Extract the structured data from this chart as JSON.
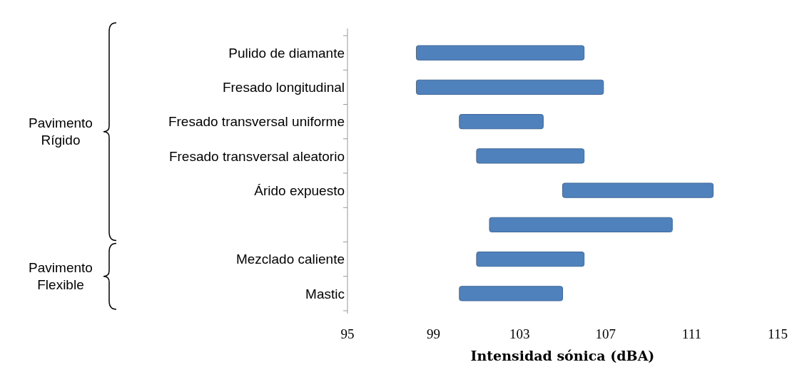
{
  "chart_data": {
    "type": "bar",
    "orientation": "horizontal",
    "categories": [
      "Pulido de diamante",
      "Fresado longitudinal",
      "Fresado transversal uniforme",
      "Fresado transversal aleatorio",
      "Árido expuesto",
      null,
      "Mezclado caliente",
      "Mastic"
    ],
    "base": [
      98.2,
      98.2,
      100.2,
      101.0,
      105.0,
      101.6,
      101.0,
      100.2
    ],
    "values": [
      7.8,
      8.7,
      3.9,
      5.0,
      7.0,
      8.5,
      5.0,
      4.8
    ],
    "color": "#4f81bd",
    "xlim": [
      95,
      115
    ],
    "xticks": [
      95,
      99,
      103,
      107,
      111,
      115
    ],
    "xlabel": "Intensidad sónica (dBA)",
    "annotations": [
      "Pavimento Rígido",
      "Pavimento Flexible"
    ],
    "grid": false
  }
}
